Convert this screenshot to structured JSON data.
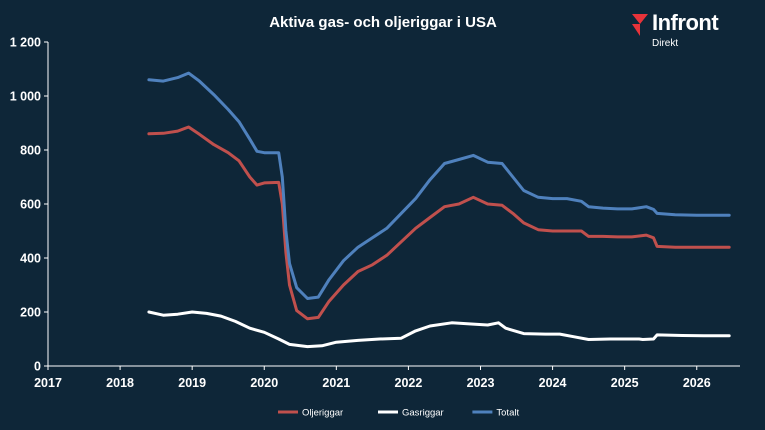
{
  "brand": {
    "name": "Infront",
    "subtitle": "Direkt",
    "accent": "#e8333a"
  },
  "chart_data": {
    "type": "line",
    "title": "Aktiva gas- och oljeriggar i USA",
    "xlabel": "",
    "ylabel": "",
    "xlim": [
      2017,
      2026.6
    ],
    "ylim": [
      0,
      1200
    ],
    "x_ticks": [
      "2017",
      "2018",
      "2019",
      "2020",
      "2021",
      "2022",
      "2023",
      "2024",
      "2025",
      "2026"
    ],
    "y_ticks": [
      "0",
      "200",
      "400",
      "600",
      "800",
      "1 000",
      "1 200"
    ],
    "grid": false,
    "legend_position": "bottom-center",
    "series": [
      {
        "name": "Oljeriggar",
        "color": "#c0504d",
        "points": [
          [
            2018.4,
            860
          ],
          [
            2018.6,
            862
          ],
          [
            2018.8,
            870
          ],
          [
            2018.95,
            885
          ],
          [
            2019.1,
            858
          ],
          [
            2019.3,
            820
          ],
          [
            2019.5,
            790
          ],
          [
            2019.65,
            760
          ],
          [
            2019.8,
            700
          ],
          [
            2019.9,
            670
          ],
          [
            2020.0,
            678
          ],
          [
            2020.2,
            680
          ],
          [
            2020.25,
            600
          ],
          [
            2020.3,
            420
          ],
          [
            2020.35,
            300
          ],
          [
            2020.45,
            205
          ],
          [
            2020.6,
            175
          ],
          [
            2020.75,
            180
          ],
          [
            2020.9,
            240
          ],
          [
            2021.1,
            300
          ],
          [
            2021.3,
            350
          ],
          [
            2021.5,
            375
          ],
          [
            2021.7,
            410
          ],
          [
            2021.9,
            460
          ],
          [
            2022.1,
            510
          ],
          [
            2022.3,
            550
          ],
          [
            2022.5,
            590
          ],
          [
            2022.7,
            600
          ],
          [
            2022.9,
            625
          ],
          [
            2023.1,
            600
          ],
          [
            2023.3,
            595
          ],
          [
            2023.45,
            565
          ],
          [
            2023.6,
            530
          ],
          [
            2023.8,
            505
          ],
          [
            2024.0,
            500
          ],
          [
            2024.2,
            500
          ],
          [
            2024.4,
            500
          ],
          [
            2024.5,
            480
          ],
          [
            2024.7,
            480
          ],
          [
            2024.9,
            478
          ],
          [
            2025.1,
            478
          ],
          [
            2025.3,
            485
          ],
          [
            2025.4,
            475
          ],
          [
            2025.45,
            443
          ],
          [
            2025.7,
            440
          ],
          [
            2026.0,
            440
          ],
          [
            2026.45,
            440
          ]
        ]
      },
      {
        "name": "Gasriggar",
        "color": "#ffffff",
        "points": [
          [
            2018.4,
            200
          ],
          [
            2018.6,
            188
          ],
          [
            2018.8,
            192
          ],
          [
            2019.0,
            200
          ],
          [
            2019.2,
            195
          ],
          [
            2019.4,
            185
          ],
          [
            2019.6,
            165
          ],
          [
            2019.8,
            140
          ],
          [
            2020.0,
            125
          ],
          [
            2020.2,
            100
          ],
          [
            2020.35,
            80
          ],
          [
            2020.6,
            72
          ],
          [
            2020.8,
            75
          ],
          [
            2021.0,
            88
          ],
          [
            2021.3,
            95
          ],
          [
            2021.6,
            100
          ],
          [
            2021.9,
            103
          ],
          [
            2022.1,
            130
          ],
          [
            2022.3,
            148
          ],
          [
            2022.6,
            160
          ],
          [
            2022.9,
            155
          ],
          [
            2023.1,
            152
          ],
          [
            2023.25,
            160
          ],
          [
            2023.35,
            140
          ],
          [
            2023.6,
            120
          ],
          [
            2023.9,
            118
          ],
          [
            2024.1,
            118
          ],
          [
            2024.3,
            108
          ],
          [
            2024.5,
            98
          ],
          [
            2024.8,
            100
          ],
          [
            2025.0,
            100
          ],
          [
            2025.2,
            100
          ],
          [
            2025.25,
            98
          ],
          [
            2025.4,
            100
          ],
          [
            2025.45,
            115
          ],
          [
            2025.8,
            113
          ],
          [
            2026.1,
            112
          ],
          [
            2026.45,
            112
          ]
        ]
      },
      {
        "name": "Totalt",
        "color": "#4f81bd",
        "points": [
          [
            2018.4,
            1060
          ],
          [
            2018.6,
            1055
          ],
          [
            2018.8,
            1068
          ],
          [
            2018.95,
            1085
          ],
          [
            2019.1,
            1055
          ],
          [
            2019.3,
            1005
          ],
          [
            2019.5,
            950
          ],
          [
            2019.65,
            905
          ],
          [
            2019.8,
            840
          ],
          [
            2019.9,
            795
          ],
          [
            2020.0,
            790
          ],
          [
            2020.2,
            790
          ],
          [
            2020.25,
            700
          ],
          [
            2020.3,
            500
          ],
          [
            2020.35,
            380
          ],
          [
            2020.45,
            290
          ],
          [
            2020.6,
            250
          ],
          [
            2020.75,
            255
          ],
          [
            2020.9,
            320
          ],
          [
            2021.1,
            390
          ],
          [
            2021.3,
            440
          ],
          [
            2021.5,
            475
          ],
          [
            2021.7,
            510
          ],
          [
            2021.9,
            565
          ],
          [
            2022.1,
            620
          ],
          [
            2022.3,
            690
          ],
          [
            2022.5,
            750
          ],
          [
            2022.7,
            765
          ],
          [
            2022.9,
            780
          ],
          [
            2023.1,
            755
          ],
          [
            2023.3,
            750
          ],
          [
            2023.45,
            700
          ],
          [
            2023.6,
            650
          ],
          [
            2023.8,
            625
          ],
          [
            2024.0,
            620
          ],
          [
            2024.2,
            620
          ],
          [
            2024.4,
            610
          ],
          [
            2024.5,
            590
          ],
          [
            2024.7,
            585
          ],
          [
            2024.9,
            582
          ],
          [
            2025.1,
            582
          ],
          [
            2025.3,
            590
          ],
          [
            2025.4,
            580
          ],
          [
            2025.45,
            565
          ],
          [
            2025.7,
            560
          ],
          [
            2026.0,
            558
          ],
          [
            2026.45,
            558
          ]
        ]
      }
    ]
  }
}
